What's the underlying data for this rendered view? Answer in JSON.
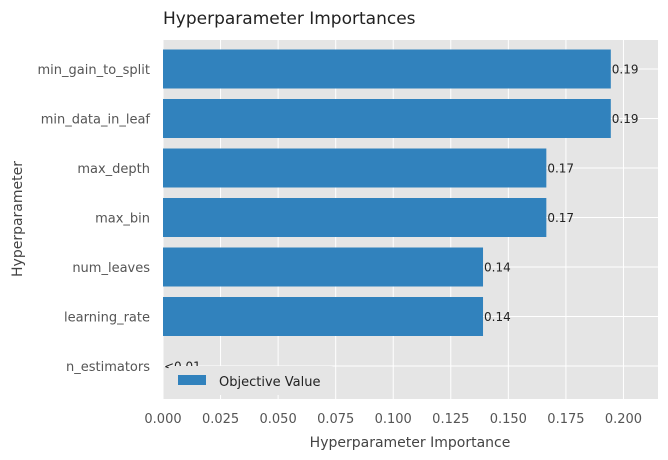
{
  "chart_data": {
    "type": "bar",
    "orientation": "horizontal",
    "title": "Hyperparameter Importances",
    "xlabel": "Hyperparameter Importance",
    "ylabel": "Hyperparameter",
    "xlim": [
      0,
      0.215
    ],
    "xticks": [
      0.0,
      0.025,
      0.05,
      0.075,
      0.1,
      0.125,
      0.15,
      0.175,
      0.2
    ],
    "xtick_labels": [
      "0.000",
      "0.025",
      "0.050",
      "0.075",
      "0.100",
      "0.125",
      "0.150",
      "0.175",
      "0.200"
    ],
    "grid": true,
    "legend": {
      "position": "lower-left",
      "entries": [
        "Objective Value"
      ]
    },
    "colors": {
      "bar": "#3182bd",
      "plot_bg": "#e5e5e5",
      "grid": "#ffffff",
      "text": "#333333",
      "tick": "#555555"
    },
    "categories": [
      "min_gain_to_split",
      "min_data_in_leaf",
      "max_depth",
      "max_bin",
      "num_leaves",
      "learning_rate",
      "n_estimators"
    ],
    "series": [
      {
        "name": "Objective Value",
        "values": [
          0.1945,
          0.1945,
          0.1665,
          0.1665,
          0.139,
          0.139,
          0.0
        ],
        "labels": [
          "0.19",
          "0.19",
          "0.17",
          "0.17",
          "0.14",
          "0.14",
          "<0.01"
        ]
      }
    ]
  }
}
